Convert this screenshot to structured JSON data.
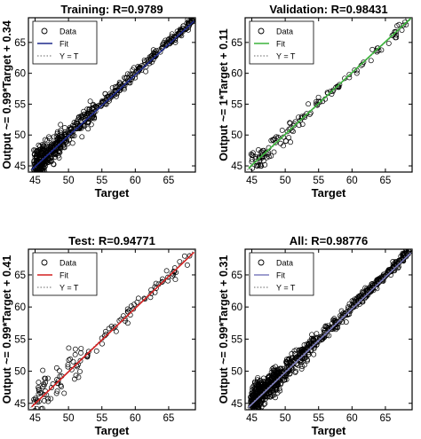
{
  "chart_data": [
    {
      "type": "scatter",
      "title": "Training: R=0.9789",
      "xlabel": "Target",
      "ylabel": "Output ~= 0.99*Target + 0.34",
      "xlim": [
        44,
        69
      ],
      "ylim": [
        44,
        69
      ],
      "xticks": [
        45,
        50,
        55,
        60,
        65
      ],
      "yticks": [
        45,
        50,
        55,
        60,
        65
      ],
      "legend_position": "top-left",
      "fit_color": "#1f2a8c",
      "fit": {
        "slope": 0.99,
        "intercept": 0.34
      },
      "series": [
        {
          "name": "Data",
          "marker": "circle"
        },
        {
          "name": "Fit",
          "style": "solid"
        },
        {
          "name": "Y = T",
          "style": "dotted"
        }
      ],
      "clusters": [
        [
          44.8,
          46.5,
          150,
          1.3
        ],
        [
          46.5,
          49,
          130,
          1.0
        ],
        [
          49,
          54,
          120,
          0.8
        ],
        [
          54,
          62,
          110,
          0.5
        ],
        [
          62,
          68.8,
          120,
          0.35
        ]
      ]
    },
    {
      "type": "scatter",
      "title": "Validation: R=0.98431",
      "xlabel": "Target",
      "ylabel": "Output ~= 1*Target + 0.11",
      "xlim": [
        44,
        69
      ],
      "ylim": [
        44,
        69
      ],
      "xticks": [
        45,
        50,
        55,
        60,
        65
      ],
      "yticks": [
        45,
        50,
        55,
        60,
        65
      ],
      "legend_position": "top-left",
      "fit_color": "#3cb43c",
      "fit": {
        "slope": 1.0,
        "intercept": 0.11
      },
      "series": [
        {
          "name": "Data",
          "marker": "circle"
        },
        {
          "name": "Fit",
          "style": "solid"
        },
        {
          "name": "Y = T",
          "style": "dotted"
        }
      ],
      "clusters": [
        [
          44.8,
          47,
          35,
          1.2
        ],
        [
          47,
          52,
          35,
          0.8
        ],
        [
          52,
          60,
          35,
          0.5
        ],
        [
          60,
          68.5,
          30,
          0.4
        ]
      ]
    },
    {
      "type": "scatter",
      "title": "Test: R=0.94771",
      "xlabel": "Target",
      "ylabel": "Output ~= 0.99*Target + 0.41",
      "xlim": [
        44,
        69
      ],
      "ylim": [
        44,
        69
      ],
      "xticks": [
        45,
        50,
        55,
        60,
        65
      ],
      "yticks": [
        45,
        50,
        55,
        60,
        65
      ],
      "legend_position": "top-left",
      "fit_color": "#d42020",
      "fit": {
        "slope": 0.99,
        "intercept": 0.41
      },
      "series": [
        {
          "name": "Data",
          "marker": "circle"
        },
        {
          "name": "Fit",
          "style": "solid"
        },
        {
          "name": "Y = T",
          "style": "dotted"
        }
      ],
      "clusters": [
        [
          44.8,
          47,
          35,
          1.8
        ],
        [
          47,
          52,
          35,
          1.4
        ],
        [
          52,
          60,
          30,
          0.8
        ],
        [
          60,
          68.5,
          30,
          0.6
        ]
      ]
    },
    {
      "type": "scatter",
      "title": "All: R=0.98776",
      "xlabel": "Target",
      "ylabel": "Output ~= 0.99*Target + 0.31",
      "xlim": [
        44,
        69
      ],
      "ylim": [
        44,
        69
      ],
      "xticks": [
        45,
        50,
        55,
        60,
        65
      ],
      "yticks": [
        45,
        50,
        55,
        60,
        65
      ],
      "legend_position": "top-left",
      "fit_color": "#7f7fbf",
      "fit": {
        "slope": 0.99,
        "intercept": 0.31
      },
      "series": [
        {
          "name": "Data",
          "marker": "circle"
        },
        {
          "name": "Fit",
          "style": "solid"
        },
        {
          "name": "Y = T",
          "style": "dotted"
        }
      ],
      "clusters": [
        [
          44.8,
          46.5,
          200,
          1.3
        ],
        [
          46.5,
          49,
          180,
          1.0
        ],
        [
          49,
          54,
          170,
          0.8
        ],
        [
          54,
          62,
          160,
          0.5
        ],
        [
          62,
          68.8,
          170,
          0.35
        ]
      ]
    }
  ]
}
